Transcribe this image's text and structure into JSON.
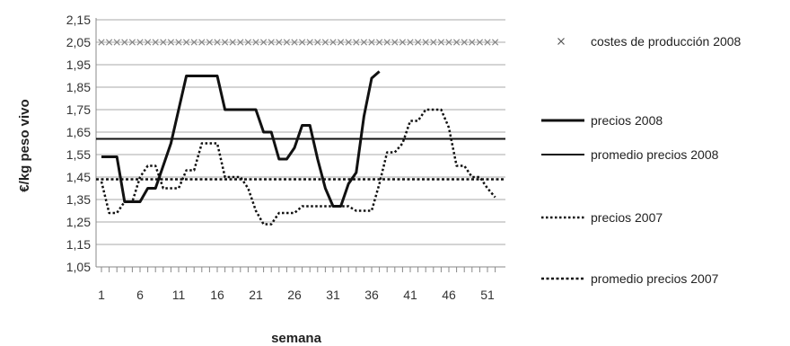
{
  "chart_data": {
    "type": "line",
    "xlabel": "semana",
    "ylabel": "€/kg peso vivo",
    "ylim": [
      1.05,
      2.15
    ],
    "xlim": [
      1,
      52
    ],
    "yticks": [
      "1,05",
      "1,15",
      "1,25",
      "1,35",
      "1,45",
      "1,55",
      "1,65",
      "1,75",
      "1,85",
      "1,95",
      "2,05",
      "2,15"
    ],
    "xticks": [
      "1",
      "6",
      "11",
      "16",
      "21",
      "26",
      "31",
      "36",
      "41",
      "46",
      "51"
    ],
    "grid": true,
    "legend_position": "right",
    "series": [
      {
        "name": "costes de producción 2008",
        "style": "x-marker",
        "color": "#888888",
        "x": [
          1,
          2,
          3,
          4,
          5,
          6,
          7,
          8,
          9,
          10,
          11,
          12,
          13,
          14,
          15,
          16,
          17,
          18,
          19,
          20,
          21,
          22,
          23,
          24,
          25,
          26,
          27,
          28,
          29,
          30,
          31,
          32,
          33,
          34,
          35,
          36,
          37,
          38,
          39,
          40,
          41,
          42,
          43,
          44,
          45,
          46,
          47,
          48,
          49,
          50,
          51,
          52
        ],
        "y": [
          2.05,
          2.05,
          2.05,
          2.05,
          2.05,
          2.05,
          2.05,
          2.05,
          2.05,
          2.05,
          2.05,
          2.05,
          2.05,
          2.05,
          2.05,
          2.05,
          2.05,
          2.05,
          2.05,
          2.05,
          2.05,
          2.05,
          2.05,
          2.05,
          2.05,
          2.05,
          2.05,
          2.05,
          2.05,
          2.05,
          2.05,
          2.05,
          2.05,
          2.05,
          2.05,
          2.05,
          2.05,
          2.05,
          2.05,
          2.05,
          2.05,
          2.05,
          2.05,
          2.05,
          2.05,
          2.05,
          2.05,
          2.05,
          2.05,
          2.05,
          2.05,
          2.05
        ]
      },
      {
        "name": "precios 2008",
        "style": "solid-thick",
        "color": "#111111",
        "x": [
          1,
          2,
          3,
          4,
          5,
          6,
          7,
          8,
          9,
          10,
          11,
          12,
          13,
          14,
          15,
          16,
          17,
          18,
          19,
          20,
          21,
          22,
          23,
          24,
          25,
          26,
          27,
          28,
          29,
          30,
          31,
          32,
          33,
          34,
          35,
          36,
          37
        ],
        "y": [
          1.54,
          1.54,
          1.54,
          1.34,
          1.34,
          1.34,
          1.4,
          1.4,
          1.5,
          1.6,
          1.75,
          1.9,
          1.9,
          1.9,
          1.9,
          1.9,
          1.75,
          1.75,
          1.75,
          1.75,
          1.75,
          1.65,
          1.65,
          1.53,
          1.53,
          1.58,
          1.68,
          1.68,
          1.53,
          1.4,
          1.32,
          1.32,
          1.42,
          1.47,
          1.72,
          1.89,
          1.92
        ]
      },
      {
        "name": "promedio precios 2008",
        "style": "solid",
        "color": "#111111",
        "x": [
          1,
          52
        ],
        "y": [
          1.62,
          1.62
        ]
      },
      {
        "name": "precios 2007",
        "style": "dotted",
        "color": "#111111",
        "x": [
          1,
          2,
          3,
          4,
          5,
          6,
          7,
          8,
          9,
          10,
          11,
          12,
          13,
          14,
          15,
          16,
          17,
          18,
          19,
          20,
          21,
          22,
          23,
          24,
          25,
          26,
          27,
          28,
          29,
          30,
          31,
          32,
          33,
          34,
          35,
          36,
          37,
          38,
          39,
          40,
          41,
          42,
          43,
          44,
          45,
          46,
          47,
          48,
          49,
          50,
          51,
          52
        ],
        "y": [
          1.43,
          1.29,
          1.29,
          1.34,
          1.34,
          1.45,
          1.5,
          1.5,
          1.4,
          1.4,
          1.4,
          1.48,
          1.48,
          1.6,
          1.6,
          1.6,
          1.45,
          1.45,
          1.45,
          1.4,
          1.3,
          1.24,
          1.24,
          1.29,
          1.29,
          1.29,
          1.32,
          1.32,
          1.32,
          1.32,
          1.32,
          1.32,
          1.32,
          1.3,
          1.3,
          1.3,
          1.42,
          1.56,
          1.56,
          1.6,
          1.7,
          1.7,
          1.75,
          1.75,
          1.75,
          1.67,
          1.5,
          1.5,
          1.45,
          1.45,
          1.4,
          1.36
        ]
      },
      {
        "name": "promedio precios 2007",
        "style": "dotted-thick",
        "color": "#111111",
        "x": [
          1,
          52
        ],
        "y": [
          1.44,
          1.44
        ]
      }
    ]
  }
}
